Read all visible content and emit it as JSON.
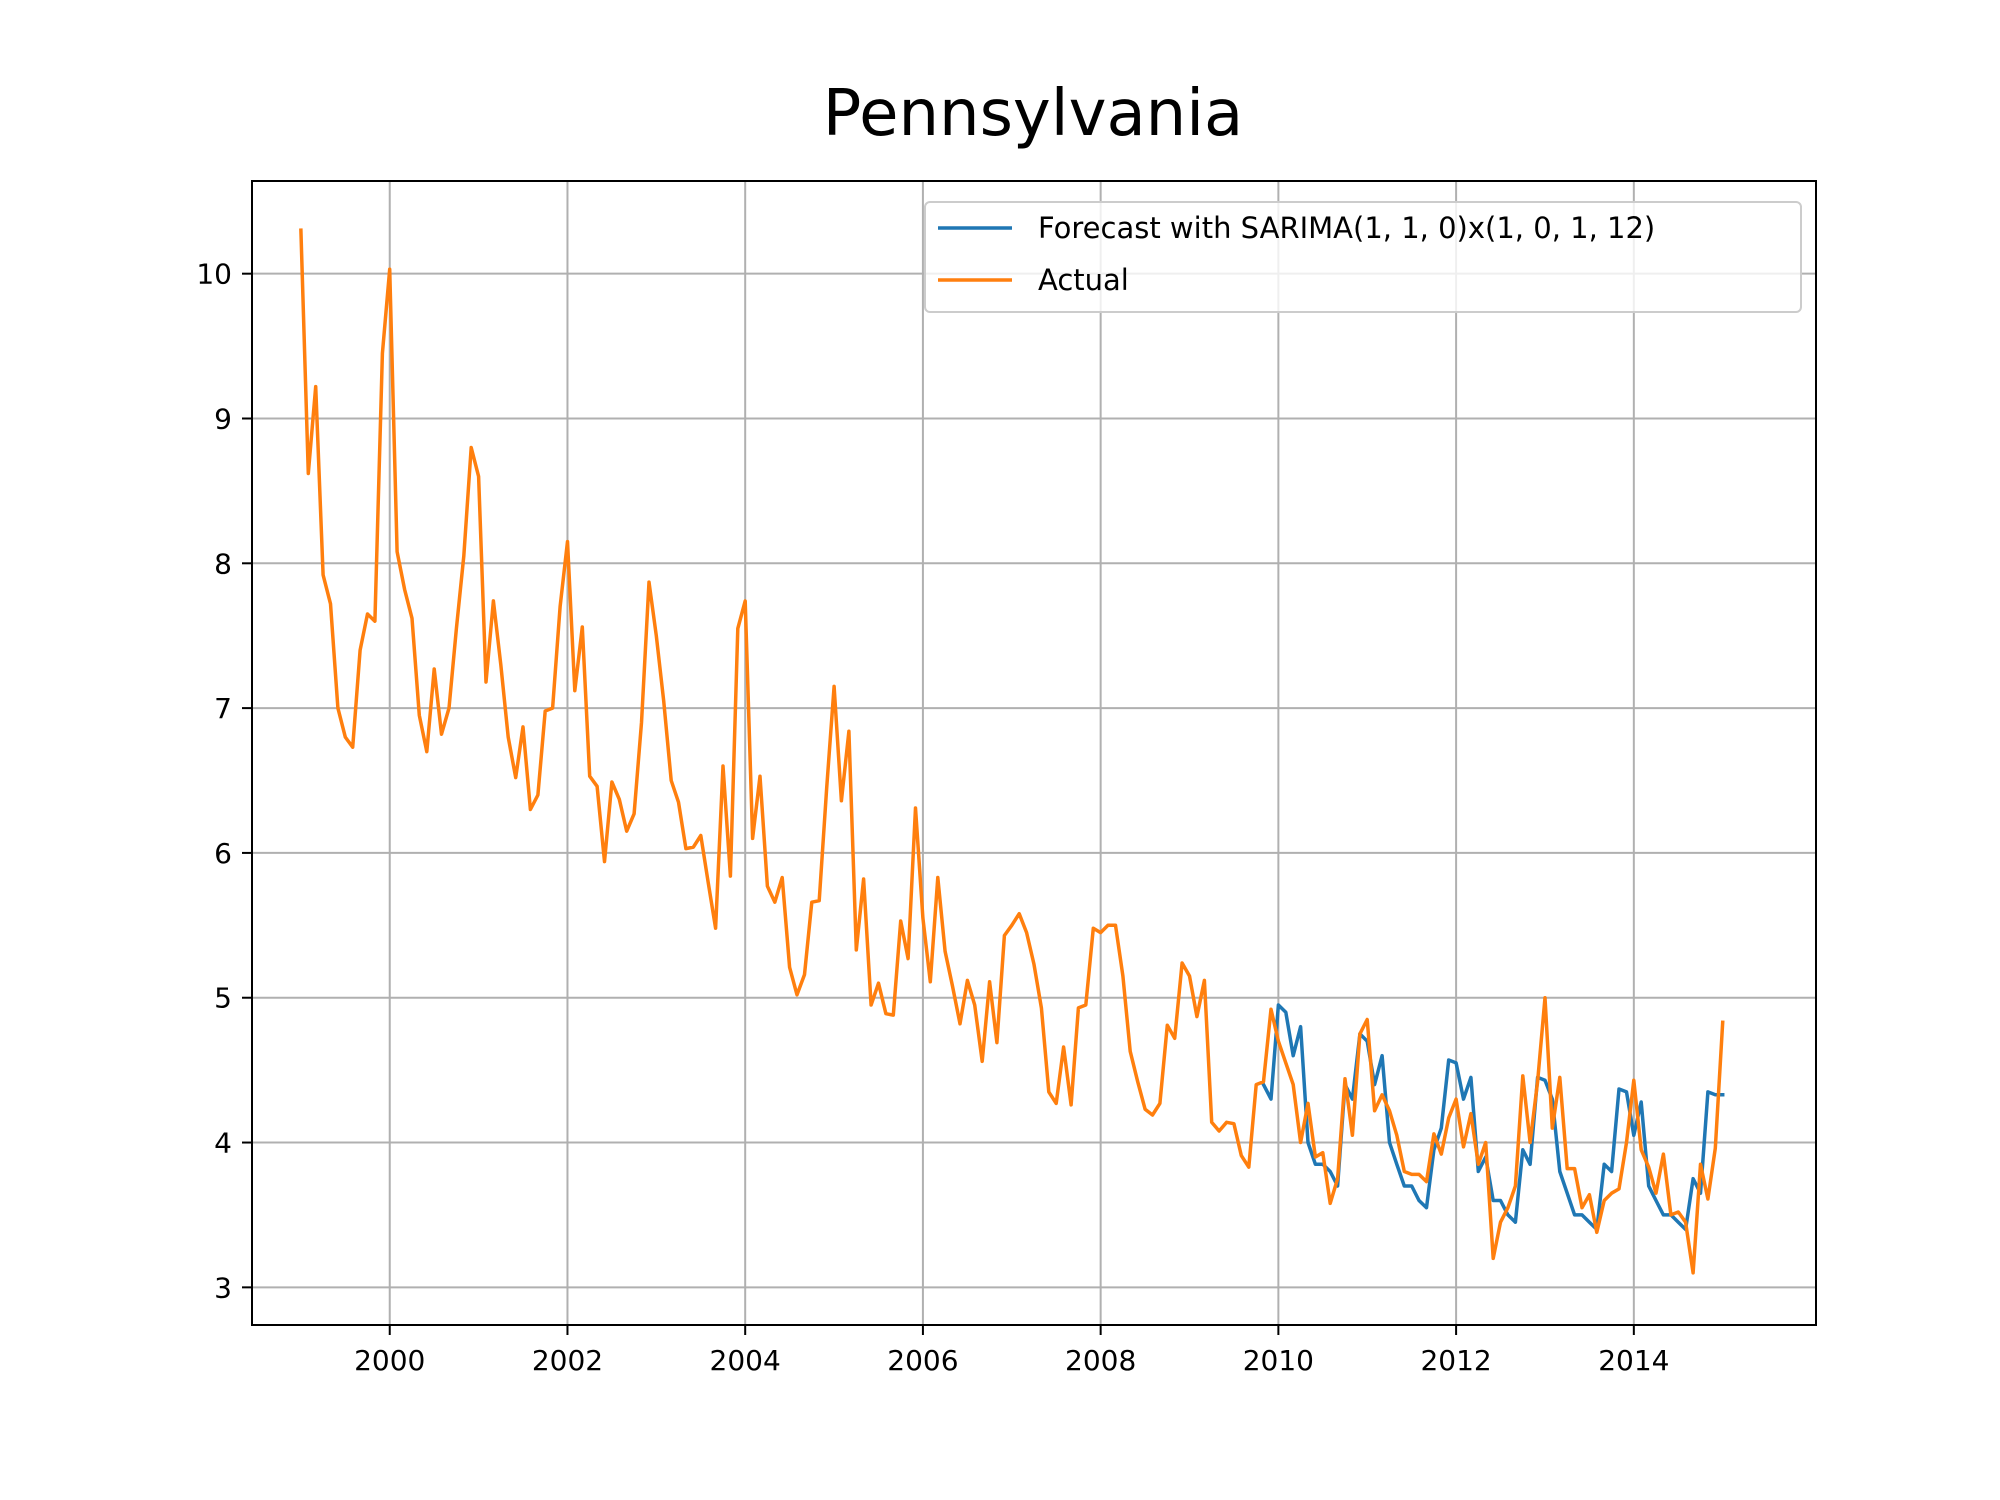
{
  "chart_data": {
    "type": "line",
    "title": "Pennsylvania",
    "xlabel": "",
    "ylabel": "",
    "grid": true,
    "legend_position": "top-right",
    "xlim": [
      1998.45,
      2016.05
    ],
    "ylim": [
      2.74,
      10.64
    ],
    "x_ticks": [
      2000,
      2002,
      2004,
      2006,
      2008,
      2010,
      2012,
      2014
    ],
    "x_tick_labels": [
      "2000",
      "2002",
      "2004",
      "2006",
      "2008",
      "2010",
      "2012",
      "2014"
    ],
    "y_ticks": [
      3,
      4,
      5,
      6,
      7,
      8,
      9,
      10
    ],
    "y_tick_labels": [
      "3",
      "4",
      "5",
      "6",
      "7",
      "8",
      "9",
      "10"
    ],
    "series": [
      {
        "name": "Forecast with SARIMA(1, 1, 0)x(1, 0, 1, 12)",
        "color": "#1f77b4",
        "x": [
          2009.833,
          2009.917,
          2010.0,
          2010.083,
          2010.167,
          2010.25,
          2010.333,
          2010.417,
          2010.5,
          2010.583,
          2010.667,
          2010.75,
          2010.833,
          2010.917,
          2011.0,
          2011.083,
          2011.167,
          2011.25,
          2011.333,
          2011.417,
          2011.5,
          2011.583,
          2011.667,
          2011.75,
          2011.833,
          2011.917,
          2012.0,
          2012.083,
          2012.167,
          2012.25,
          2012.333,
          2012.417,
          2012.5,
          2012.583,
          2012.667,
          2012.75,
          2012.833,
          2012.917,
          2013.0,
          2013.083,
          2013.167,
          2013.25,
          2013.333,
          2013.417,
          2013.5,
          2013.583,
          2013.667,
          2013.75,
          2013.833,
          2013.917,
          2014.0,
          2014.083,
          2014.167,
          2014.25,
          2014.333,
          2014.417,
          2014.5,
          2014.583,
          2014.667,
          2014.75,
          2014.833,
          2014.917,
          2015.0
        ],
        "y": [
          4.4,
          4.3,
          4.95,
          4.9,
          4.6,
          4.8,
          4.0,
          3.85,
          3.85,
          3.8,
          3.7,
          4.4,
          4.3,
          4.75,
          4.7,
          4.4,
          4.6,
          4.0,
          3.85,
          3.7,
          3.7,
          3.6,
          3.55,
          3.95,
          4.1,
          4.57,
          4.55,
          4.3,
          4.45,
          3.8,
          3.9,
          3.6,
          3.6,
          3.5,
          3.45,
          3.95,
          3.85,
          4.45,
          4.43,
          4.3,
          3.8,
          3.65,
          3.5,
          3.5,
          3.45,
          3.4,
          3.85,
          3.8,
          4.37,
          4.35,
          4.05,
          4.28,
          3.7,
          3.6,
          3.5,
          3.5,
          3.45,
          3.4,
          3.75,
          3.65,
          4.35,
          4.33,
          4.33
        ]
      },
      {
        "name": "Actual",
        "color": "#ff7f0e",
        "x": [
          1999.0,
          1999.083,
          1999.167,
          1999.25,
          1999.333,
          1999.417,
          1999.5,
          1999.583,
          1999.667,
          1999.75,
          1999.833,
          1999.917,
          2000.0,
          2000.083,
          2000.167,
          2000.25,
          2000.333,
          2000.417,
          2000.5,
          2000.583,
          2000.667,
          2000.75,
          2000.833,
          2000.917,
          2001.0,
          2001.083,
          2001.167,
          2001.25,
          2001.333,
          2001.417,
          2001.5,
          2001.583,
          2001.667,
          2001.75,
          2001.833,
          2001.917,
          2002.0,
          2002.083,
          2002.167,
          2002.25,
          2002.333,
          2002.417,
          2002.5,
          2002.583,
          2002.667,
          2002.75,
          2002.833,
          2002.917,
          2003.0,
          2003.083,
          2003.167,
          2003.25,
          2003.333,
          2003.417,
          2003.5,
          2003.583,
          2003.667,
          2003.75,
          2003.833,
          2003.917,
          2004.0,
          2004.083,
          2004.167,
          2004.25,
          2004.333,
          2004.417,
          2004.5,
          2004.583,
          2004.667,
          2004.75,
          2004.833,
          2004.917,
          2005.0,
          2005.083,
          2005.167,
          2005.25,
          2005.333,
          2005.417,
          2005.5,
          2005.583,
          2005.667,
          2005.75,
          2005.833,
          2005.917,
          2006.0,
          2006.083,
          2006.167,
          2006.25,
          2006.333,
          2006.417,
          2006.5,
          2006.583,
          2006.667,
          2006.75,
          2006.833,
          2006.917,
          2007.0,
          2007.083,
          2007.167,
          2007.25,
          2007.333,
          2007.417,
          2007.5,
          2007.583,
          2007.667,
          2007.75,
          2007.833,
          2007.917,
          2008.0,
          2008.083,
          2008.167,
          2008.25,
          2008.333,
          2008.417,
          2008.5,
          2008.583,
          2008.667,
          2008.75,
          2008.833,
          2008.917,
          2009.0,
          2009.083,
          2009.167,
          2009.25,
          2009.333,
          2009.417,
          2009.5,
          2009.583,
          2009.667,
          2009.75,
          2009.833,
          2009.917,
          2010.0,
          2010.083,
          2010.167,
          2010.25,
          2010.333,
          2010.417,
          2010.5,
          2010.583,
          2010.667,
          2010.75,
          2010.833,
          2010.917,
          2011.0,
          2011.083,
          2011.167,
          2011.25,
          2011.333,
          2011.417,
          2011.5,
          2011.583,
          2011.667,
          2011.75,
          2011.833,
          2011.917,
          2012.0,
          2012.083,
          2012.167,
          2012.25,
          2012.333,
          2012.417,
          2012.5,
          2012.583,
          2012.667,
          2012.75,
          2012.833,
          2012.917,
          2013.0,
          2013.083,
          2013.167,
          2013.25,
          2013.333,
          2013.417,
          2013.5,
          2013.583,
          2013.667,
          2013.75,
          2013.833,
          2013.917,
          2014.0,
          2014.083,
          2014.167,
          2014.25,
          2014.333,
          2014.417,
          2014.5,
          2014.583,
          2014.667,
          2014.75,
          2014.833,
          2014.917,
          2015.0
        ],
        "y": [
          10.3,
          8.62,
          9.22,
          7.92,
          7.72,
          7.0,
          6.8,
          6.73,
          7.4,
          7.65,
          7.6,
          9.45,
          10.03,
          8.08,
          7.82,
          7.62,
          6.95,
          6.7,
          7.27,
          6.82,
          7.0,
          7.55,
          8.05,
          8.8,
          8.6,
          7.18,
          7.74,
          7.3,
          6.8,
          6.52,
          6.87,
          6.3,
          6.4,
          6.98,
          7.0,
          7.7,
          8.15,
          7.12,
          7.56,
          6.53,
          6.46,
          5.94,
          6.49,
          6.37,
          6.15,
          6.27,
          6.9,
          7.87,
          7.5,
          7.05,
          6.5,
          6.35,
          6.03,
          6.04,
          6.12,
          5.8,
          5.48,
          6.6,
          5.84,
          7.55,
          7.74,
          6.1,
          6.53,
          5.77,
          5.66,
          5.83,
          5.21,
          5.02,
          5.16,
          5.66,
          5.67,
          6.45,
          7.15,
          6.36,
          6.84,
          5.33,
          5.82,
          4.95,
          5.1,
          4.89,
          4.88,
          5.53,
          5.27,
          6.31,
          5.55,
          5.11,
          5.83,
          5.32,
          5.08,
          4.82,
          5.12,
          4.95,
          4.56,
          5.11,
          4.69,
          5.43,
          5.5,
          5.58,
          5.45,
          5.23,
          4.93,
          4.35,
          4.27,
          4.66,
          4.26,
          4.93,
          4.95,
          5.48,
          5.45,
          5.5,
          5.5,
          5.15,
          4.63,
          4.42,
          4.23,
          4.19,
          4.27,
          4.81,
          4.72,
          5.24,
          5.15,
          4.87,
          5.12,
          4.14,
          4.08,
          4.14,
          4.13,
          3.91,
          3.83,
          4.4,
          4.42,
          4.92,
          4.7,
          4.55,
          4.4,
          4.0,
          4.27,
          3.9,
          3.93,
          3.58,
          3.75,
          4.44,
          4.05,
          4.75,
          4.85,
          4.22,
          4.33,
          4.22,
          4.05,
          3.8,
          3.78,
          3.78,
          3.73,
          4.06,
          3.92,
          4.17,
          4.3,
          3.97,
          4.2,
          3.85,
          4.0,
          3.2,
          3.45,
          3.55,
          3.7,
          4.46,
          4.0,
          4.42,
          5.0,
          4.1,
          4.45,
          3.82,
          3.82,
          3.55,
          3.64,
          3.38,
          3.6,
          3.65,
          3.68,
          4.0,
          4.43,
          3.95,
          3.83,
          3.65,
          3.92,
          3.5,
          3.52,
          3.45,
          3.1,
          3.85,
          3.61,
          3.96,
          4.83
        ]
      }
    ]
  }
}
